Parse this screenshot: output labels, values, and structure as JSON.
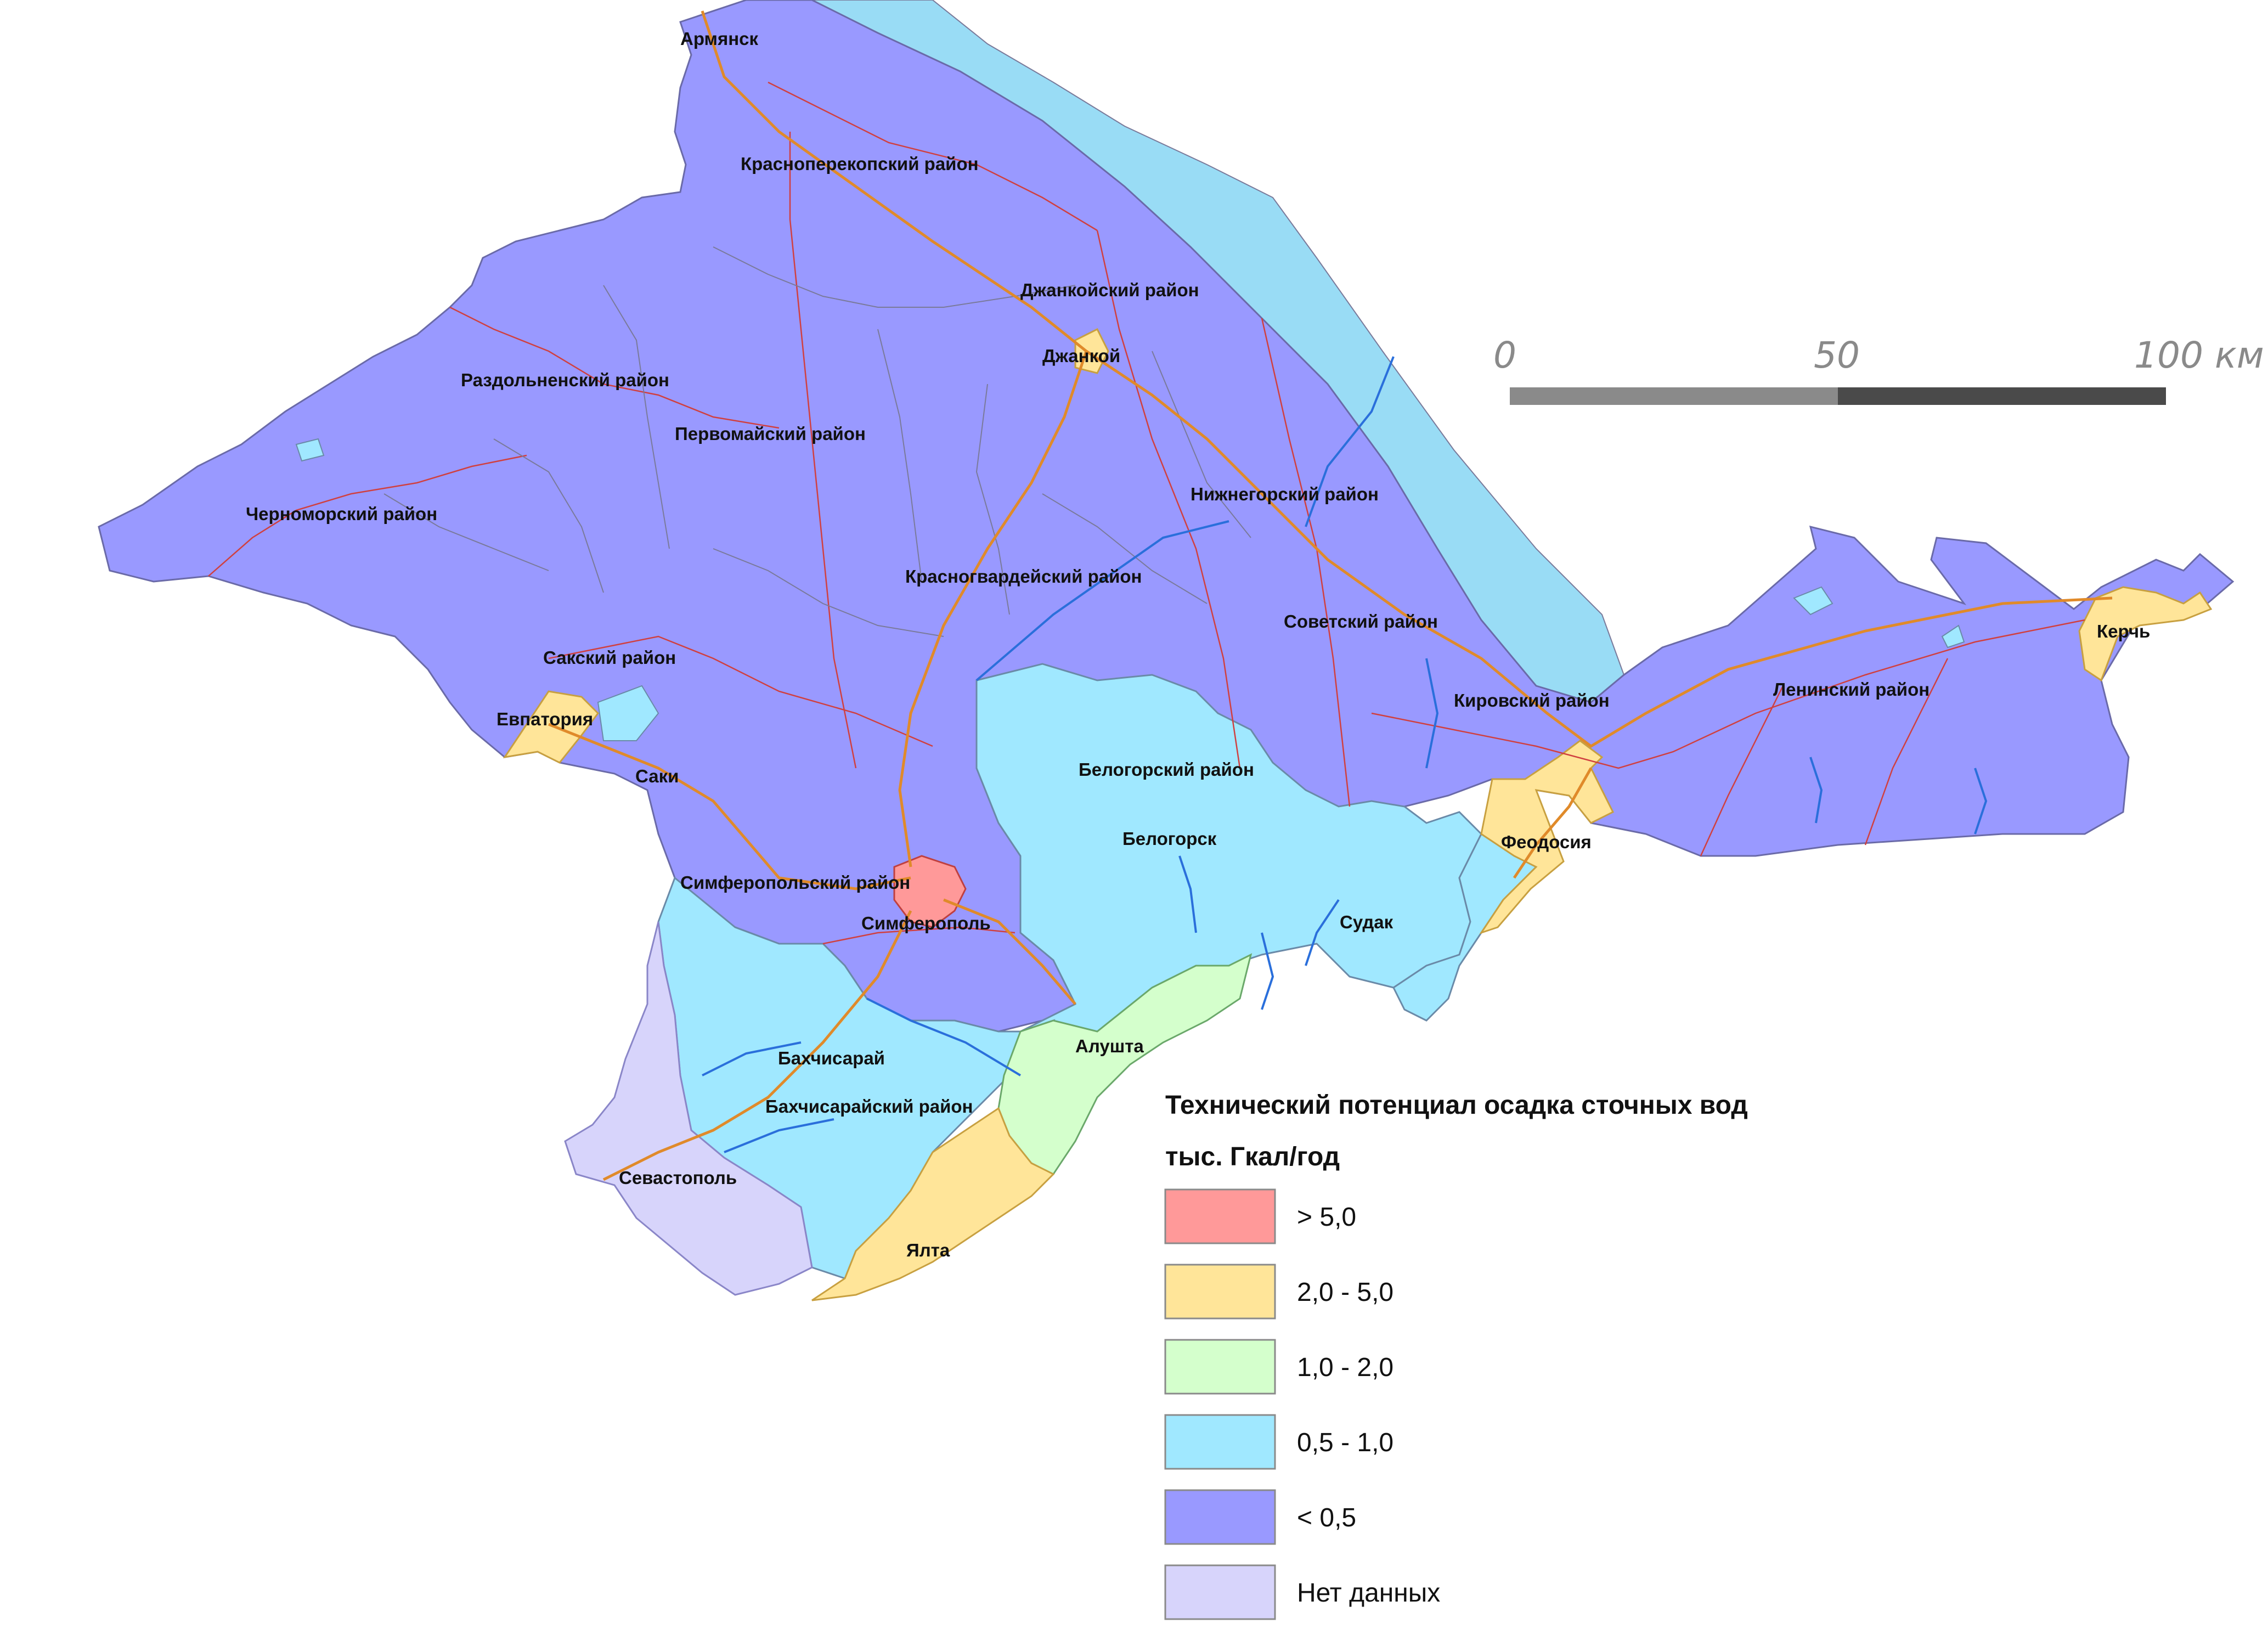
{
  "places": [
    {
      "id": "armyansk",
      "label": "Армянск"
    },
    {
      "id": "krasnoperekopsky",
      "label": "Красноперекопский район"
    },
    {
      "id": "dzhankoysky",
      "label": "Джанкойский район"
    },
    {
      "id": "dzhankoy",
      "label": "Джанкой"
    },
    {
      "id": "razdolnensky",
      "label": "Раздольненский район"
    },
    {
      "id": "pervomaysky",
      "label": "Первомайский район"
    },
    {
      "id": "nizhnegorsky",
      "label": "Нижнегорский район"
    },
    {
      "id": "chernomorsky",
      "label": "Черноморский район"
    },
    {
      "id": "krasnogvardeysky",
      "label": "Красногвардейский район"
    },
    {
      "id": "sovetsky",
      "label": "Советский район"
    },
    {
      "id": "kerch",
      "label": "Керчь"
    },
    {
      "id": "saksky",
      "label": "Сакский район"
    },
    {
      "id": "kirovsky",
      "label": "Кировский район"
    },
    {
      "id": "leninsky",
      "label": "Ленинский район"
    },
    {
      "id": "evpatoria",
      "label": "Евпатория"
    },
    {
      "id": "saki",
      "label": "Саки"
    },
    {
      "id": "belogorsky",
      "label": "Белогорский район"
    },
    {
      "id": "belogorsk",
      "label": "Белогорск"
    },
    {
      "id": "feodosia",
      "label": "Феодосия"
    },
    {
      "id": "simferopolsky",
      "label": "Симферопольский район"
    },
    {
      "id": "simferopol",
      "label": "Симферополь"
    },
    {
      "id": "sudak",
      "label": "Судак"
    },
    {
      "id": "alushta",
      "label": "Алушта"
    },
    {
      "id": "bakhchisaray",
      "label": "Бахчисарай"
    },
    {
      "id": "bakhchisaraysky",
      "label": "Бахчисарайский район"
    },
    {
      "id": "sevastopol",
      "label": "Севастополь"
    },
    {
      "id": "yalta",
      "label": "Ялта"
    }
  ],
  "scale_bar": {
    "labels": [
      "0",
      "50",
      "100 км"
    ]
  },
  "legend": {
    "title_line1": "Технический потенциал осадка сточных вод",
    "title_line2": "тыс. Гкал/год",
    "items": [
      {
        "label": "> 5,0",
        "color": "#ff9999"
      },
      {
        "label": "2,0 - 5,0",
        "color": "#ffe599"
      },
      {
        "label": "1,0 - 2,0",
        "color": "#d4ffcc"
      },
      {
        "label": "0,5 - 1,0",
        "color": "#a0e8ff"
      },
      {
        "label": "< 0,5",
        "color": "#9999ff"
      },
      {
        "label": "Нет данных",
        "color": "#d7d4fb"
      }
    ]
  },
  "colors": {
    "sea_shelf": "#99dcf5",
    "river": "#2a6fdb",
    "road": "#e08a2a",
    "border_red": "#d04040",
    "district_line": "#7a7a9a"
  }
}
